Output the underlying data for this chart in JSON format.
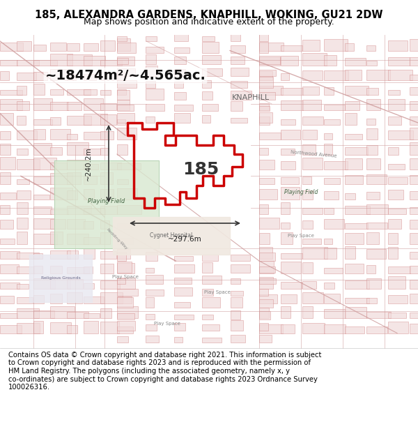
{
  "title_line1": "185, ALEXANDRA GARDENS, KNAPHILL, WOKING, GU21 2DW",
  "title_line2": "Map shows position and indicative extent of the property.",
  "area_text": "~18474m²/~4.565ac.",
  "label_185": "185",
  "label_knaphill": "KNAPHILL",
  "dim_width": "~297.6m",
  "dim_height": "~240.2m",
  "footer_text": "Contains OS data © Crown copyright and database right 2021. This information is subject\nto Crown copyright and database rights 2023 and is reproduced with the permission of\nHM Land Registry. The polygons (including the associated geometry, namely x, y\nco-ordinates) are subject to Crown copyright and database rights 2023 Ordnance Survey\n100026316.",
  "map_bg_color": "#f5e8e8",
  "map_line_color": "#e8a0a0",
  "polygon_color": "#cc0000",
  "polygon_fill": "none",
  "title_bg": "#ffffff",
  "footer_bg": "#ffffff",
  "fig_width": 6.0,
  "fig_height": 6.25,
  "dpi": 100
}
